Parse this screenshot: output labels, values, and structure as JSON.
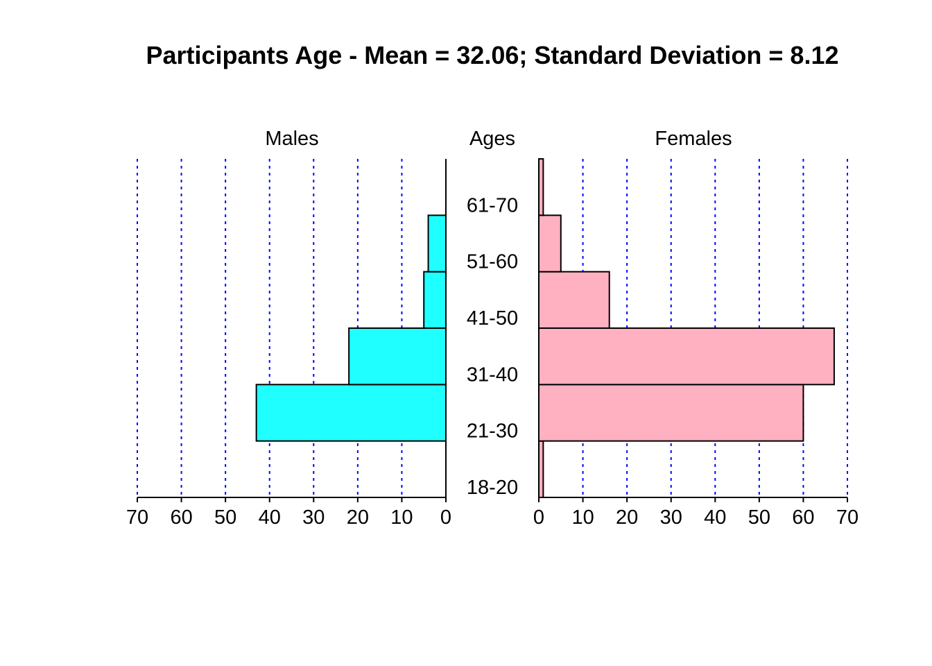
{
  "chart_data": {
    "type": "bar",
    "title": "Participants Age - Mean = 32.06; Standard Deviation = 8.12",
    "left_label": "Males",
    "center_label": "Ages",
    "right_label": "Females",
    "categories": [
      "18-20",
      "21-30",
      "31-40",
      "41-50",
      "51-60",
      "61-70"
    ],
    "series": [
      {
        "name": "Males",
        "values": [
          0,
          43,
          22,
          5,
          4,
          0
        ],
        "color": "#1fffff"
      },
      {
        "name": "Females",
        "values": [
          1,
          60,
          67,
          16,
          5,
          1
        ],
        "color": "#ffb0c1"
      }
    ],
    "xlim": [
      0,
      70
    ],
    "ticks": [
      0,
      10,
      20,
      30,
      40,
      50,
      60,
      70
    ],
    "grid": true,
    "grid_color": "#0000ff"
  }
}
